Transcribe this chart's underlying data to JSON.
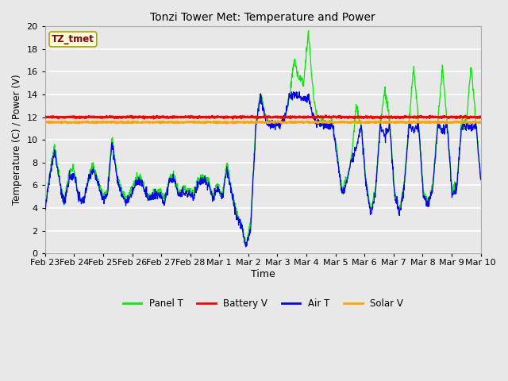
{
  "title": "Tonzi Tower Met: Temperature and Power",
  "xlabel": "Time",
  "ylabel": "Temperature (C) / Power (V)",
  "ylim": [
    0,
    20
  ],
  "background_color": "#e8e8e8",
  "grid_color": "white",
  "annotation_text": "TZ_tmet",
  "annotation_color": "#8b0000",
  "annotation_bg": "#ffffdd",
  "annotation_border": "#aaaa00",
  "legend_labels": [
    "Panel T",
    "Battery V",
    "Air T",
    "Solar V"
  ],
  "line_colors": [
    "#00ee00",
    "#ff0000",
    "#0000ff",
    "#ffa500"
  ],
  "xtick_labels": [
    "Feb 23",
    "Feb 24",
    "Feb 25",
    "Feb 26",
    "Feb 27",
    "Feb 28",
    "Mar 1",
    "Mar 2",
    "Mar 3",
    "Mar 4",
    "Mar 5",
    "Mar 6",
    "Mar 7",
    "Mar 8",
    "Mar 9",
    "Mar 10"
  ],
  "battery_v": 12.0,
  "solar_v": 11.55
}
